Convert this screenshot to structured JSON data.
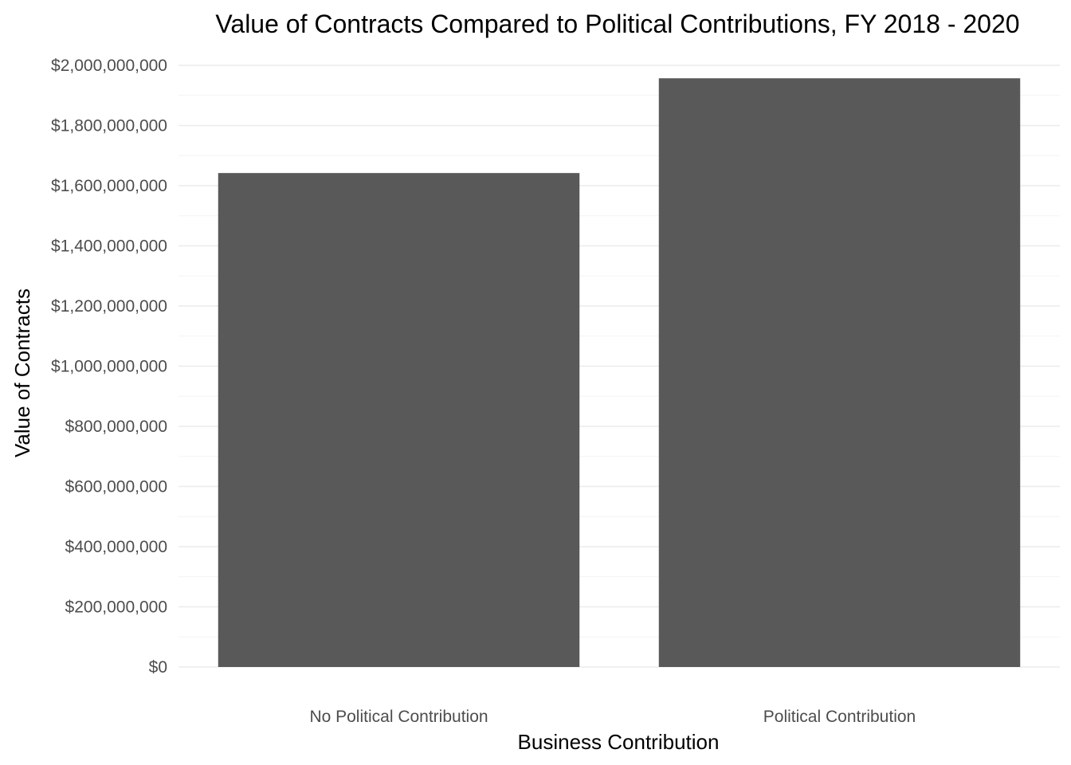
{
  "chart_data": {
    "type": "bar",
    "title": "Value of Contracts Compared to Political Contributions, FY 2018 - 2020",
    "xlabel": "Business Contribution",
    "ylabel": "Value of Contracts",
    "categories": [
      "No Political Contribution",
      "Political Contribution"
    ],
    "values": [
      1642000000,
      1957000000
    ],
    "ylim": [
      0,
      2000000000
    ],
    "yticks": [
      0,
      200000000,
      400000000,
      600000000,
      800000000,
      1000000000,
      1200000000,
      1400000000,
      1600000000,
      1800000000,
      2000000000
    ],
    "ytick_labels": [
      "$0",
      "$200,000,000",
      "$400,000,000",
      "$600,000,000",
      "$800,000,000",
      "$1,000,000,000",
      "$1,200,000,000",
      "$1,400,000,000",
      "$1,600,000,000",
      "$1,800,000,000",
      "$2,000,000,000"
    ],
    "bar_color": "#595959",
    "grid": true,
    "legend": "none"
  }
}
